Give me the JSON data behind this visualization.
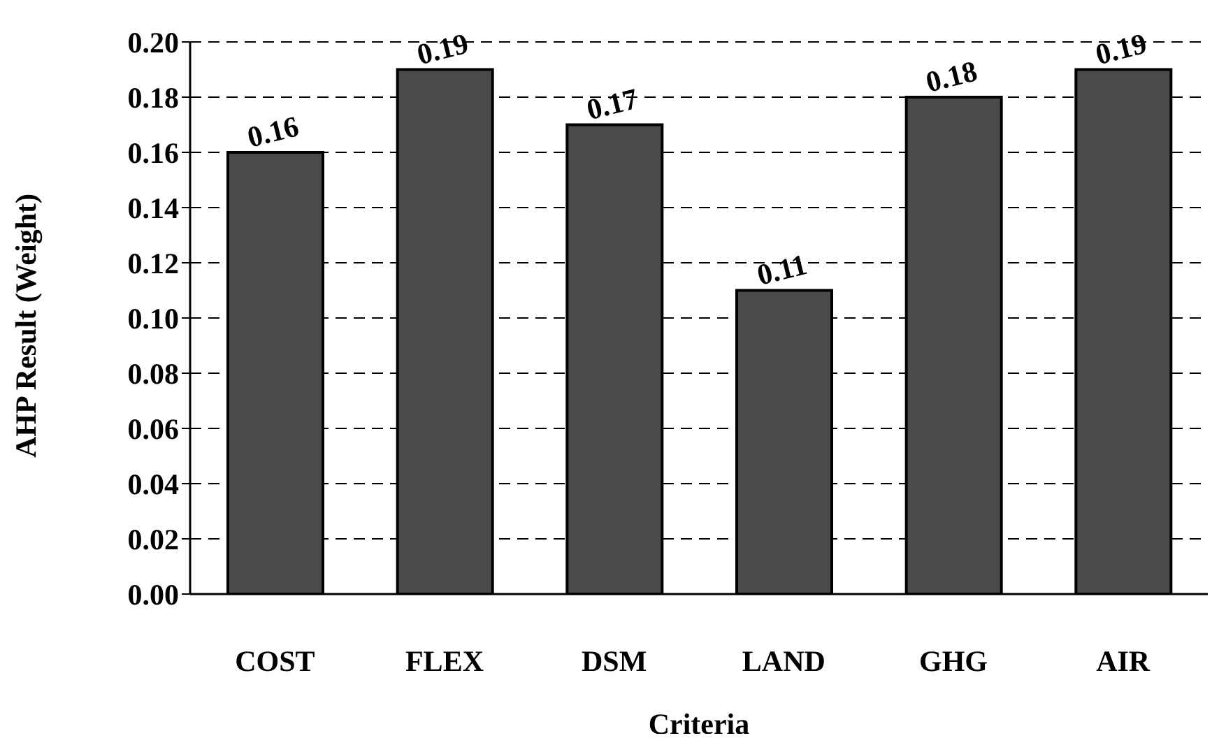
{
  "chart_data": {
    "type": "bar",
    "xlabel": "Criteria",
    "ylabel": "AHP Result (Weight)",
    "categories": [
      "COST",
      "FLEX",
      "DSM",
      "LAND",
      "GHG",
      "AIR"
    ],
    "values": [
      0.16,
      0.19,
      0.17,
      0.11,
      0.18,
      0.19
    ],
    "color": "#4a4a4a",
    "ylim": [
      0,
      0.2
    ],
    "yticks": [
      {
        "value": 0,
        "label": "0.00"
      },
      {
        "value": 0.02,
        "label": "0.02"
      },
      {
        "value": 0.04,
        "label": "0.04"
      },
      {
        "value": 0.06,
        "label": "0.06"
      },
      {
        "value": 0.08,
        "label": "0.08"
      },
      {
        "value": 0.1,
        "label": "0.10"
      },
      {
        "value": 0.12,
        "label": "0.12"
      },
      {
        "value": 0.14,
        "label": "0.14"
      },
      {
        "value": 0.16,
        "label": "0.16"
      },
      {
        "value": 0.18,
        "label": "0.18"
      },
      {
        "value": 0.2,
        "label": "0.20"
      }
    ],
    "grid": "y",
    "data_labels": true
  }
}
